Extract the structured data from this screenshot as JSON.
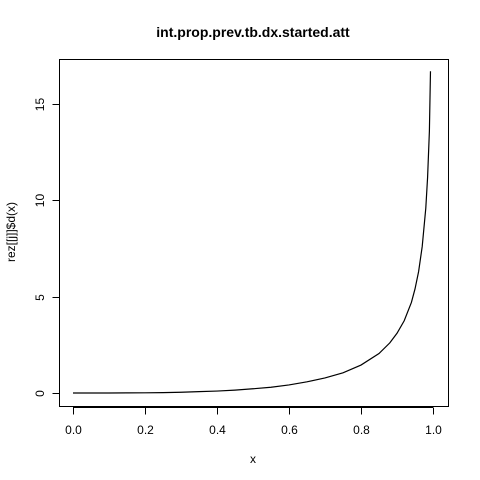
{
  "chart_data": {
    "type": "line",
    "title": "int.prop.prev.tb.dx.started.att",
    "xlabel": "x",
    "ylabel": "rez[[j]]$d(x)",
    "xlim": [
      0,
      1
    ],
    "ylim": [
      0,
      16.5
    ],
    "xticks": [
      0.0,
      0.2,
      0.4,
      0.6,
      0.8,
      1.0
    ],
    "xtick_labels": [
      "0.0",
      "0.2",
      "0.4",
      "0.6",
      "0.8",
      "1.0"
    ],
    "yticks": [
      0,
      5,
      10,
      15
    ],
    "ytick_labels": [
      "0",
      "5",
      "10",
      "15"
    ],
    "grid": false,
    "series": [
      {
        "name": "rez[[j]]$d(x)",
        "x": [
          0.0,
          0.05,
          0.1,
          0.15,
          0.2,
          0.25,
          0.3,
          0.35,
          0.4,
          0.45,
          0.5,
          0.55,
          0.6,
          0.65,
          0.7,
          0.75,
          0.8,
          0.85,
          0.88,
          0.9,
          0.92,
          0.94,
          0.95,
          0.96,
          0.97,
          0.98,
          0.985,
          0.99,
          0.993
        ],
        "y": [
          0.0,
          0.0,
          0.0,
          0.005,
          0.01,
          0.02,
          0.04,
          0.07,
          0.1,
          0.15,
          0.22,
          0.3,
          0.42,
          0.58,
          0.78,
          1.05,
          1.45,
          2.05,
          2.6,
          3.1,
          3.75,
          4.7,
          5.4,
          6.3,
          7.6,
          9.6,
          11.2,
          13.6,
          16.7
        ]
      }
    ]
  }
}
